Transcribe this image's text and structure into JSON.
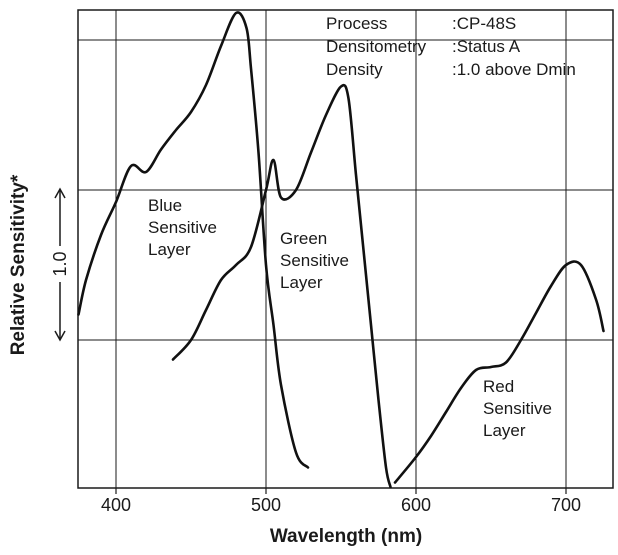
{
  "chart_data": {
    "type": "line",
    "title": "",
    "xlabel": "Wavelength (nm)",
    "ylabel": "Relative Sensitivity*",
    "xlim": [
      375,
      725
    ],
    "ylim": [
      -3,
      1.2
    ],
    "x_ticks": [
      400,
      500,
      600,
      700
    ],
    "x_tick_labels": [
      "400",
      "500",
      "600",
      "700"
    ],
    "grid": true,
    "annotations": {
      "rows": [
        {
          "key": "Process",
          "value": ":CP-48S"
        },
        {
          "key": "Densitometry",
          "value": ":Status A"
        },
        {
          "key": "Density",
          "value": ":1.0 above Dmin"
        }
      ]
    },
    "scale_marker": {
      "label": "1.0",
      "low": -1.0,
      "high": 0.0
    },
    "series": [
      {
        "label_lines": [
          "Blue",
          "Sensitive",
          "Layer"
        ],
        "x": [
          375,
          380,
          390,
          400,
          410,
          420,
          430,
          440,
          450,
          460,
          470,
          480,
          487,
          490,
          495,
          500,
          505,
          510,
          520,
          528
        ],
        "y": [
          -0.83,
          -0.6,
          -0.3,
          -0.08,
          0.16,
          0.12,
          0.27,
          0.4,
          0.52,
          0.7,
          0.96,
          1.18,
          1.08,
          0.81,
          0.25,
          -0.5,
          -0.9,
          -1.3,
          -1.75,
          -1.85
        ]
      },
      {
        "label_lines": [
          "Green",
          "Sensitive",
          "Layer"
        ],
        "x": [
          438,
          450,
          460,
          470,
          480,
          490,
          500,
          505,
          510,
          520,
          530,
          540,
          550,
          555,
          560,
          565,
          570,
          575,
          580,
          583
        ],
        "y": [
          -1.13,
          -1.0,
          -0.8,
          -0.6,
          -0.5,
          -0.38,
          0.0,
          0.2,
          -0.05,
          0.0,
          0.25,
          0.5,
          0.69,
          0.61,
          0.1,
          -0.4,
          -0.9,
          -1.4,
          -1.85,
          -1.98
        ]
      },
      {
        "label_lines": [
          "Red",
          "Sensitive",
          "Layer"
        ],
        "x": [
          586,
          600,
          610,
          620,
          630,
          640,
          650,
          660,
          670,
          680,
          690,
          700,
          710,
          720,
          725
        ],
        "y": [
          -1.95,
          -1.78,
          -1.64,
          -1.48,
          -1.32,
          -1.2,
          -1.18,
          -1.15,
          -1.0,
          -0.82,
          -0.64,
          -0.5,
          -0.5,
          -0.73,
          -0.94
        ]
      }
    ]
  }
}
